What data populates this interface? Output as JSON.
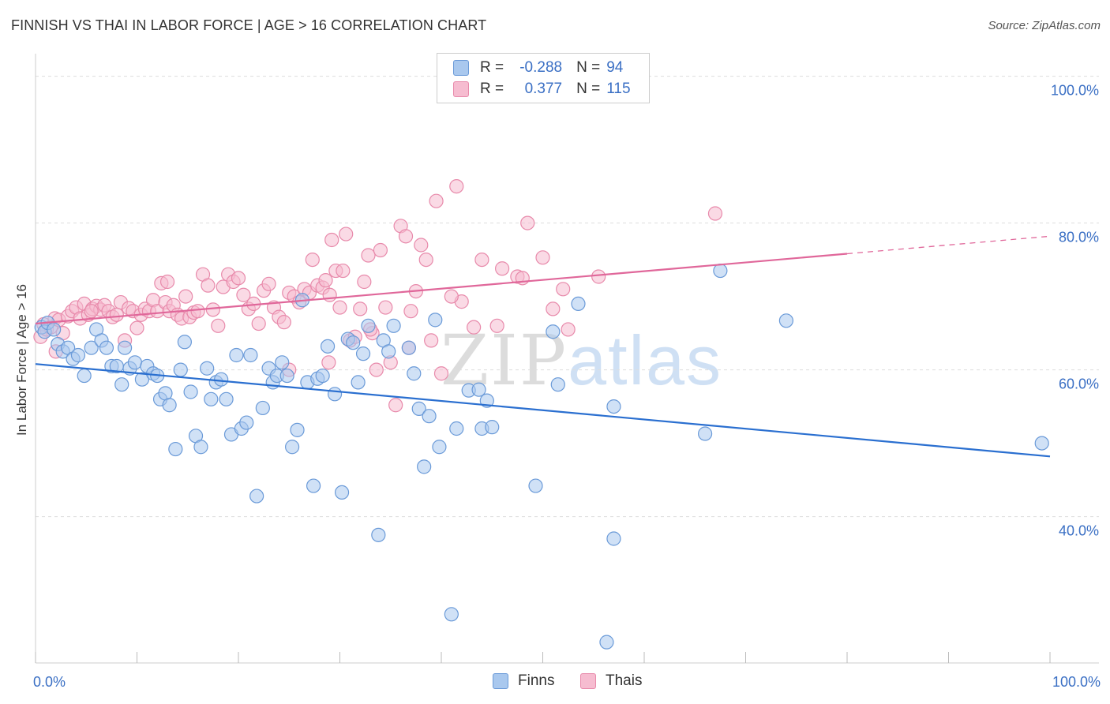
{
  "title": "FINNISH VS THAI IN LABOR FORCE | AGE > 16 CORRELATION CHART",
  "source": "Source: ZipAtlas.com",
  "watermark": {
    "zip": "ZIP",
    "atlas": "atlas"
  },
  "colors": {
    "finns_fill": "#a9c8ee",
    "finns_stroke": "#6a9ad8",
    "finns_line": "#2a6fd0",
    "thais_fill": "#f6bcd0",
    "thais_stroke": "#e88aab",
    "thais_line": "#e0679a",
    "axis_label": "#3a6fc4",
    "grid": "#dddddd"
  },
  "legend": {
    "finns": {
      "r_label": "R =",
      "r_value": "-0.288",
      "n_label": "N =",
      "n_value": "94"
    },
    "thais": {
      "r_label": "R =",
      "r_value": "0.377",
      "n_label": "N =",
      "n_value": "115"
    }
  },
  "bottom_legend": {
    "finns": "Finns",
    "thais": "Thais"
  },
  "chart_data": {
    "type": "scatter",
    "title": "FINNISH VS THAI IN LABOR FORCE | AGE > 16 CORRELATION CHART",
    "xlabel": "",
    "ylabel": "In Labor Force | Age > 16",
    "xlim": [
      0,
      100
    ],
    "ylim": [
      22,
      102
    ],
    "x_tick_labels": [
      "0.0%",
      "100.0%"
    ],
    "y_ticks": [
      {
        "value": 100,
        "label": "100.0%"
      },
      {
        "value": 80,
        "label": "80.0%"
      },
      {
        "value": 60,
        "label": "60.0%"
      },
      {
        "value": 40,
        "label": "40.0%"
      }
    ],
    "grid": "horizontal dashed",
    "legend_position": "top-center",
    "series": [
      {
        "name": "Finns",
        "r": -0.288,
        "n": 94,
        "trend": {
          "x": [
            0,
            100
          ],
          "y": [
            60.8,
            48.2
          ],
          "dashed_from": null
        },
        "points": [
          [
            0.6,
            65.8
          ],
          [
            0.9,
            65.2
          ],
          [
            1.2,
            66.4
          ],
          [
            1.8,
            65.5
          ],
          [
            2.2,
            63.5
          ],
          [
            2.7,
            62.5
          ],
          [
            3.2,
            63.0
          ],
          [
            3.7,
            61.5
          ],
          [
            4.2,
            62.0
          ],
          [
            4.8,
            59.2
          ],
          [
            5.5,
            63.0
          ],
          [
            6.0,
            65.5
          ],
          [
            6.5,
            64.0
          ],
          [
            7.0,
            63.0
          ],
          [
            7.5,
            60.5
          ],
          [
            8.0,
            60.5
          ],
          [
            8.5,
            58.0
          ],
          [
            8.8,
            63.0
          ],
          [
            9.3,
            60.2
          ],
          [
            9.8,
            61.0
          ],
          [
            10.5,
            58.7
          ],
          [
            11.0,
            60.5
          ],
          [
            11.6,
            59.5
          ],
          [
            12.0,
            59.2
          ],
          [
            12.3,
            56.0
          ],
          [
            12.8,
            56.8
          ],
          [
            13.2,
            55.2
          ],
          [
            13.8,
            49.2
          ],
          [
            14.3,
            60.0
          ],
          [
            14.7,
            63.8
          ],
          [
            15.3,
            57.0
          ],
          [
            15.8,
            51.0
          ],
          [
            16.3,
            49.5
          ],
          [
            16.9,
            60.2
          ],
          [
            17.3,
            56.0
          ],
          [
            17.8,
            58.3
          ],
          [
            18.3,
            58.7
          ],
          [
            18.8,
            56.0
          ],
          [
            19.3,
            51.2
          ],
          [
            19.8,
            62.0
          ],
          [
            20.3,
            52.0
          ],
          [
            20.8,
            52.8
          ],
          [
            21.2,
            62.0
          ],
          [
            21.8,
            42.8
          ],
          [
            22.4,
            54.8
          ],
          [
            23.0,
            60.2
          ],
          [
            23.4,
            58.3
          ],
          [
            23.8,
            59.2
          ],
          [
            24.3,
            61.0
          ],
          [
            24.8,
            59.2
          ],
          [
            25.3,
            49.5
          ],
          [
            25.8,
            51.8
          ],
          [
            26.3,
            69.5
          ],
          [
            26.8,
            58.3
          ],
          [
            27.4,
            44.2
          ],
          [
            27.8,
            58.8
          ],
          [
            28.3,
            59.2
          ],
          [
            28.8,
            63.2
          ],
          [
            29.5,
            56.7
          ],
          [
            30.2,
            43.3
          ],
          [
            30.8,
            64.2
          ],
          [
            31.3,
            63.7
          ],
          [
            31.8,
            58.3
          ],
          [
            32.3,
            62.2
          ],
          [
            32.8,
            66.0
          ],
          [
            33.8,
            37.5
          ],
          [
            34.3,
            64.0
          ],
          [
            34.8,
            62.5
          ],
          [
            35.3,
            66.0
          ],
          [
            36.8,
            63.0
          ],
          [
            37.3,
            59.5
          ],
          [
            37.8,
            54.7
          ],
          [
            38.3,
            46.8
          ],
          [
            38.8,
            53.7
          ],
          [
            39.4,
            66.8
          ],
          [
            39.8,
            49.5
          ],
          [
            41.0,
            26.7
          ],
          [
            41.5,
            52.0
          ],
          [
            42.7,
            57.2
          ],
          [
            43.7,
            57.3
          ],
          [
            44.0,
            52.0
          ],
          [
            44.5,
            55.8
          ],
          [
            45.0,
            52.2
          ],
          [
            49.3,
            44.2
          ],
          [
            51.0,
            65.2
          ],
          [
            51.5,
            58.0
          ],
          [
            53.5,
            69.0
          ],
          [
            56.3,
            22.9
          ],
          [
            57.0,
            55.0
          ],
          [
            57.0,
            37.0
          ],
          [
            66.0,
            51.3
          ],
          [
            67.5,
            73.5
          ],
          [
            74.0,
            66.7
          ],
          [
            99.2,
            50.0
          ]
        ]
      },
      {
        "name": "Thais",
        "r": 0.377,
        "n": 115,
        "trend": {
          "x": [
            0,
            100
          ],
          "y": [
            66.3,
            78.2
          ],
          "dashed_from": 80
        },
        "points": [
          [
            0.5,
            64.5
          ],
          [
            0.8,
            66.2
          ],
          [
            1.1,
            65.5
          ],
          [
            1.5,
            65.8
          ],
          [
            1.9,
            67.0
          ],
          [
            2.3,
            66.8
          ],
          [
            2.7,
            65.0
          ],
          [
            3.2,
            67.3
          ],
          [
            3.6,
            68.0
          ],
          [
            4.0,
            68.5
          ],
          [
            4.4,
            67.0
          ],
          [
            4.8,
            69.0
          ],
          [
            5.2,
            67.5
          ],
          [
            5.6,
            68.3
          ],
          [
            6.0,
            68.7
          ],
          [
            6.4,
            68.2
          ],
          [
            6.8,
            68.8
          ],
          [
            7.2,
            68.0
          ],
          [
            7.6,
            67.2
          ],
          [
            8.0,
            67.5
          ],
          [
            8.4,
            69.2
          ],
          [
            8.8,
            64.0
          ],
          [
            9.2,
            68.4
          ],
          [
            9.6,
            68.0
          ],
          [
            10.0,
            65.7
          ],
          [
            10.4,
            67.5
          ],
          [
            10.8,
            68.3
          ],
          [
            11.2,
            68.0
          ],
          [
            11.6,
            69.5
          ],
          [
            12.0,
            68.0
          ],
          [
            12.4,
            71.8
          ],
          [
            12.8,
            69.2
          ],
          [
            13.2,
            68.0
          ],
          [
            13.6,
            68.8
          ],
          [
            14.0,
            67.5
          ],
          [
            14.4,
            67.0
          ],
          [
            14.8,
            70.0
          ],
          [
            15.2,
            67.2
          ],
          [
            15.6,
            67.8
          ],
          [
            16.0,
            68.0
          ],
          [
            16.5,
            73.0
          ],
          [
            17.0,
            71.5
          ],
          [
            17.5,
            68.2
          ],
          [
            18.0,
            66.0
          ],
          [
            18.5,
            71.3
          ],
          [
            19.0,
            73.0
          ],
          [
            19.5,
            72.0
          ],
          [
            20.0,
            72.5
          ],
          [
            20.5,
            70.2
          ],
          [
            21.0,
            68.3
          ],
          [
            21.5,
            69.0
          ],
          [
            22.0,
            66.3
          ],
          [
            22.5,
            70.8
          ],
          [
            23.0,
            71.7
          ],
          [
            23.5,
            68.5
          ],
          [
            24.0,
            67.2
          ],
          [
            24.5,
            66.5
          ],
          [
            25.0,
            70.5
          ],
          [
            25.5,
            70.0
          ],
          [
            26.0,
            69.2
          ],
          [
            26.5,
            71.0
          ],
          [
            27.0,
            70.5
          ],
          [
            27.3,
            75.0
          ],
          [
            27.8,
            71.5
          ],
          [
            28.3,
            71.2
          ],
          [
            28.6,
            72.2
          ],
          [
            28.9,
            61.0
          ],
          [
            29.2,
            77.7
          ],
          [
            29.6,
            73.5
          ],
          [
            30.0,
            68.5
          ],
          [
            30.3,
            73.5
          ],
          [
            30.6,
            78.5
          ],
          [
            31.0,
            64.0
          ],
          [
            31.5,
            64.5
          ],
          [
            32.0,
            68.3
          ],
          [
            32.4,
            72.0
          ],
          [
            32.8,
            75.6
          ],
          [
            33.2,
            65.0
          ],
          [
            33.6,
            60.0
          ],
          [
            34.0,
            76.3
          ],
          [
            34.5,
            68.5
          ],
          [
            35.0,
            61.0
          ],
          [
            35.5,
            55.2
          ],
          [
            36.0,
            79.6
          ],
          [
            36.5,
            78.2
          ],
          [
            37.0,
            68.0
          ],
          [
            37.5,
            70.7
          ],
          [
            38.0,
            77.0
          ],
          [
            38.5,
            75.0
          ],
          [
            39.0,
            64.0
          ],
          [
            39.5,
            83.0
          ],
          [
            40.0,
            59.5
          ],
          [
            41.5,
            85.0
          ],
          [
            42.0,
            69.3
          ],
          [
            43.2,
            65.8
          ],
          [
            44.0,
            75.0
          ],
          [
            46.0,
            73.8
          ],
          [
            47.5,
            72.7
          ],
          [
            48.0,
            72.5
          ],
          [
            48.5,
            80.0
          ],
          [
            50.0,
            75.3
          ],
          [
            51.0,
            68.3
          ],
          [
            52.5,
            65.5
          ],
          [
            55.5,
            72.7
          ],
          [
            67.0,
            81.3
          ],
          [
            2.0,
            62.5
          ],
          [
            5.5,
            68.0
          ],
          [
            13.0,
            72.0
          ],
          [
            25.0,
            60.0
          ],
          [
            29.0,
            70.2
          ],
          [
            33.0,
            65.5
          ],
          [
            36.8,
            63.0
          ],
          [
            41.0,
            70.0
          ],
          [
            45.5,
            66.0
          ],
          [
            52.0,
            71.0
          ]
        ]
      }
    ]
  }
}
